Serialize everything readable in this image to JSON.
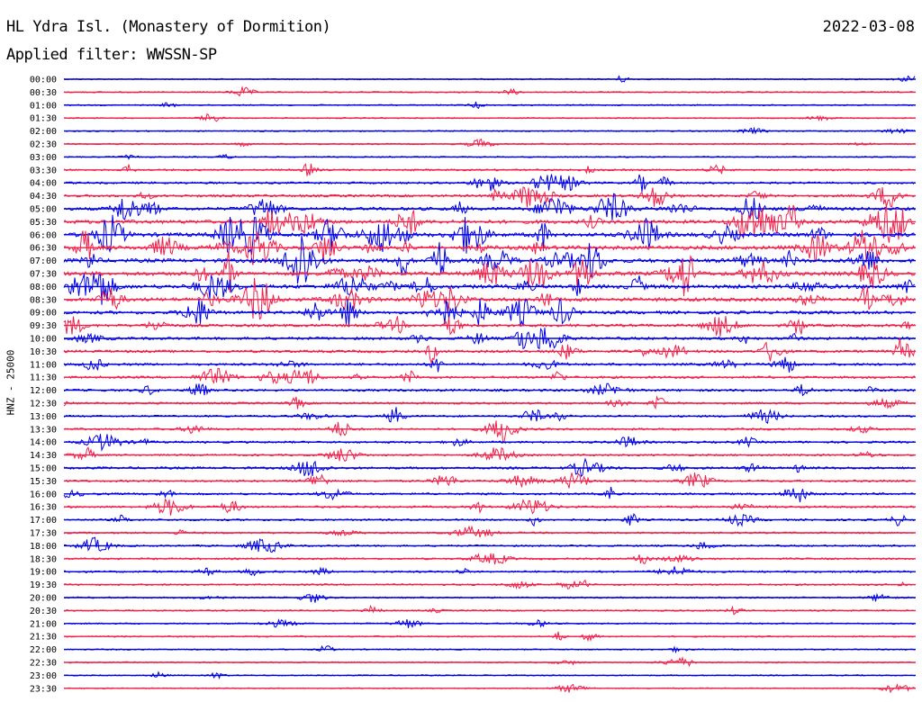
{
  "header": {
    "title": "HL Ydra Isl. (Monastery of Dormition)",
    "date": "2022-03-08",
    "filter": "Applied filter: WWSSN-SP"
  },
  "chart_data": {
    "type": "line",
    "title": "HL Ydra Isl. (Monastery of Dormition)",
    "ylabel": "HNZ - 25000",
    "xlabel": "",
    "colors": [
      "#0000e6",
      "#f0204a"
    ],
    "tick_labels": [
      "00:00",
      "00:30",
      "01:00",
      "01:30",
      "02:00",
      "02:30",
      "03:00",
      "03:30",
      "04:00",
      "04:30",
      "05:00",
      "05:30",
      "06:00",
      "06:30",
      "07:00",
      "07:30",
      "08:00",
      "08:30",
      "09:00",
      "09:30",
      "10:00",
      "10:30",
      "11:00",
      "11:30",
      "12:00",
      "12:30",
      "13:00",
      "13:30",
      "14:00",
      "14:30",
      "15:00",
      "15:30",
      "16:00",
      "16:30",
      "17:00",
      "17:30",
      "18:00",
      "18:30",
      "19:00",
      "19:30",
      "20:00",
      "20:30",
      "21:00",
      "21:30",
      "22:00",
      "22:30",
      "23:00",
      "23:30"
    ],
    "activity_level": [
      0.05,
      0.08,
      0.08,
      0.05,
      0.06,
      0.1,
      0.08,
      0.25,
      0.35,
      0.5,
      0.75,
      0.9,
      1.0,
      1.0,
      1.0,
      1.0,
      1.0,
      0.9,
      0.7,
      0.6,
      0.6,
      0.55,
      0.45,
      0.45,
      0.45,
      0.35,
      0.3,
      0.35,
      0.35,
      0.3,
      0.45,
      0.35,
      0.35,
      0.35,
      0.3,
      0.25,
      0.25,
      0.25,
      0.3,
      0.2,
      0.15,
      0.15,
      0.12,
      0.12,
      0.05,
      0.05,
      0.04,
      0.04
    ]
  }
}
